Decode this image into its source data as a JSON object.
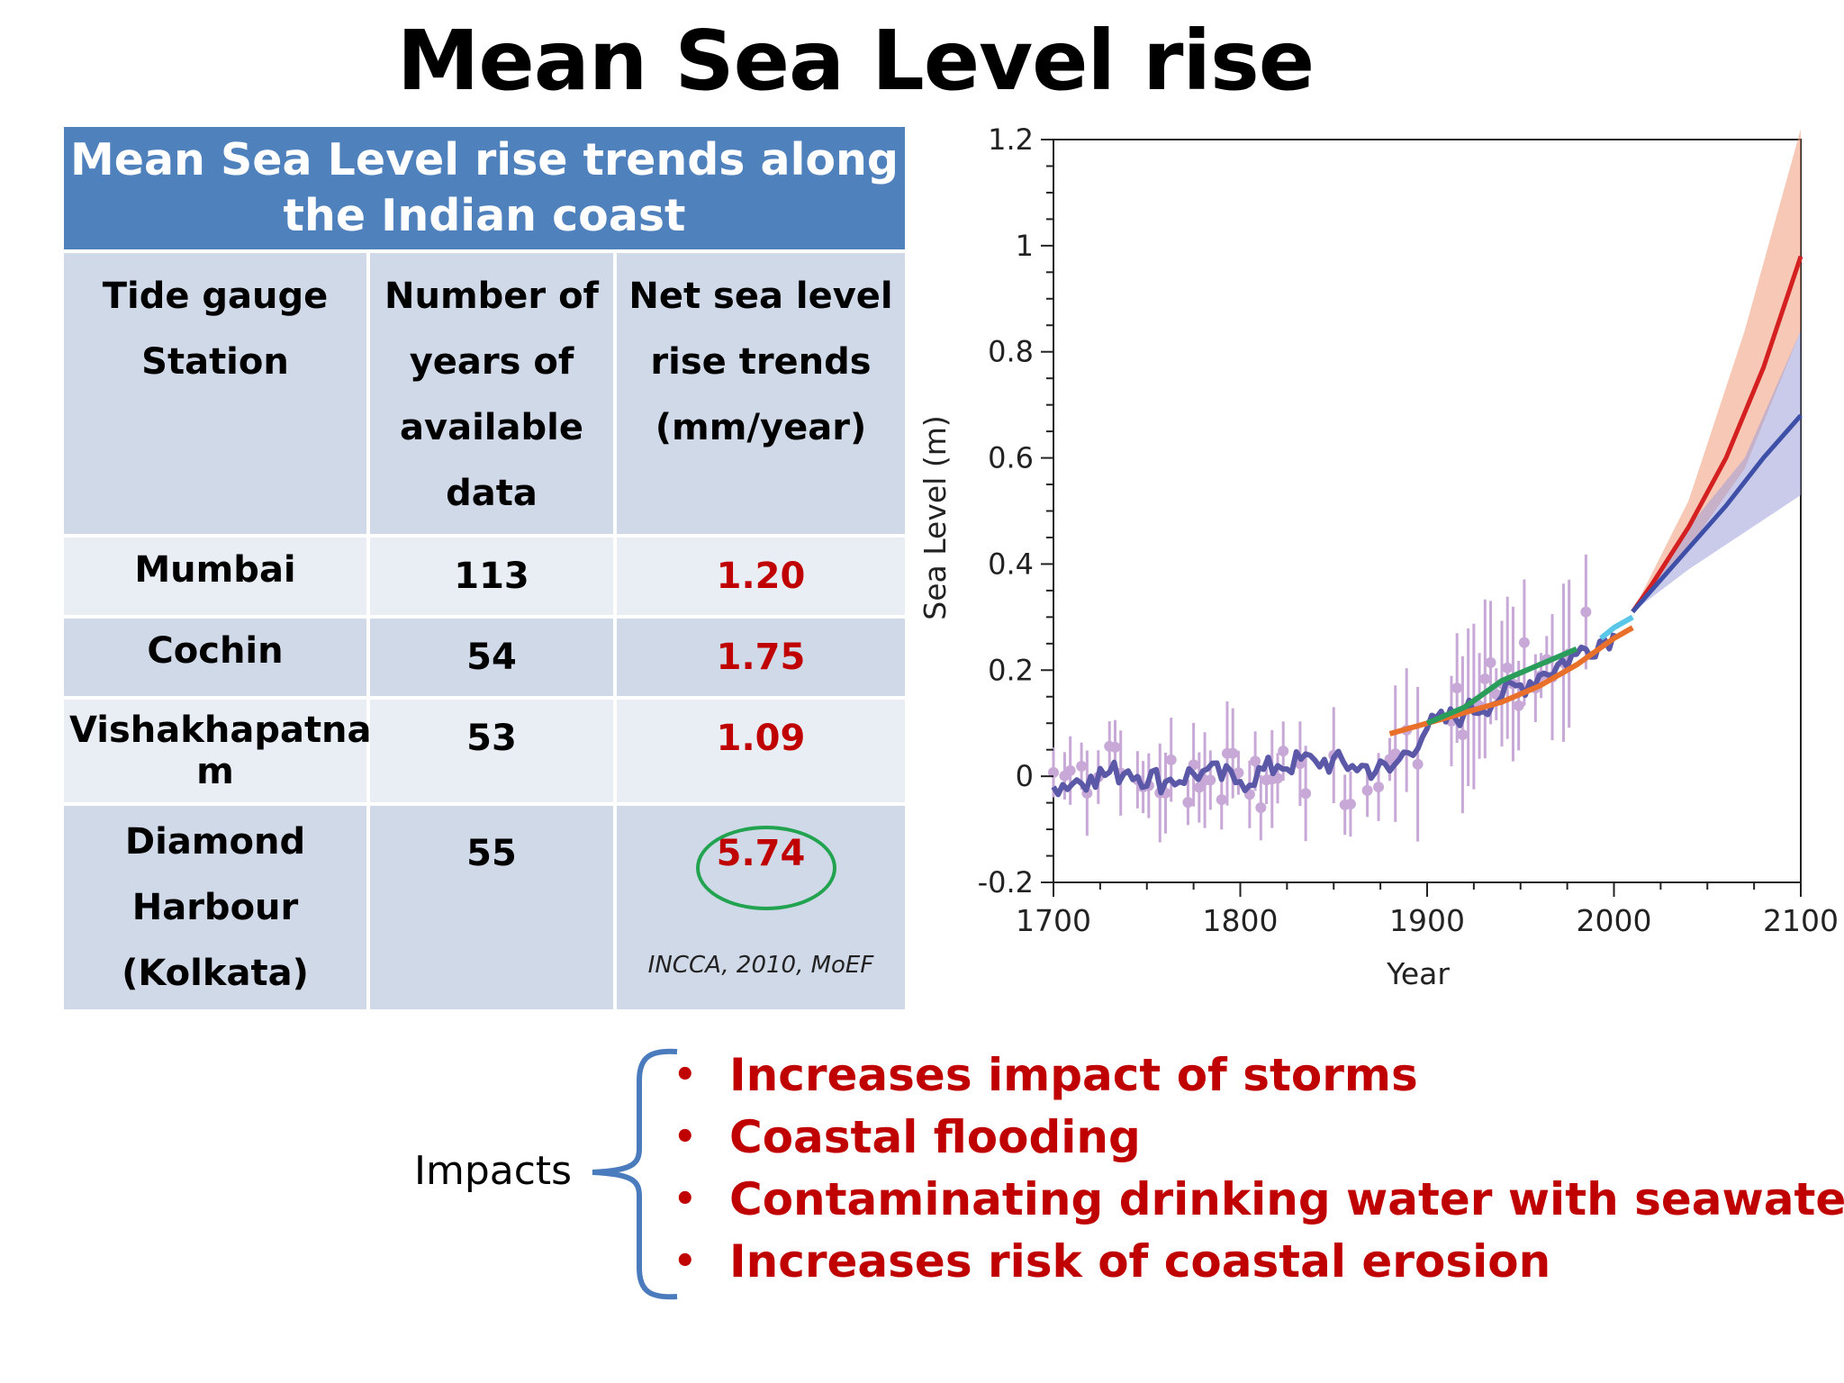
{
  "title": "Mean Sea Level rise",
  "table": {
    "caption_line1": "Mean Sea Level rise trends along",
    "caption_line2": "the Indian coast",
    "headers": [
      [
        "Tide gauge",
        "Station"
      ],
      [
        "Number of",
        "years of",
        "available",
        "data"
      ],
      [
        "Net sea level",
        "rise trends",
        "(mm/year)"
      ]
    ],
    "rows": [
      {
        "station": [
          "Mumbai"
        ],
        "years": "113",
        "trend": "1.20"
      },
      {
        "station": [
          "Cochin"
        ],
        "years": "54",
        "trend": "1.75"
      },
      {
        "station": [
          "Vishakhapatna",
          "m"
        ],
        "years": "53",
        "trend": "1.09"
      },
      {
        "station": [
          "Diamond",
          "Harbour",
          "(Kolkata)"
        ],
        "years": "55",
        "trend": "5.74"
      }
    ],
    "source": "INCCA, 2010, MoEF",
    "highlight_color": "#21a350",
    "trend_color": "#c00000",
    "header_color": "#4f81bd"
  },
  "chart_data": {
    "type": "line",
    "xlabel": "Year",
    "ylabel": "Sea Level (m)",
    "xlim": [
      1700,
      2100
    ],
    "ylim": [
      -0.2,
      1.2
    ],
    "xticks": [
      "1700",
      "1800",
      "1900",
      "2000",
      "2100"
    ],
    "yticks": [
      "-0.2",
      "0",
      "0.2",
      "0.4",
      "0.6",
      "0.8",
      "1",
      "1.2"
    ],
    "series": [
      {
        "color": "#5b58a8",
        "x": [
          1700,
          1720,
          1740,
          1760,
          1780,
          1800,
          1820,
          1840,
          1860,
          1880,
          1900,
          1920,
          1940,
          1960,
          1980,
          2000
        ],
        "y": [
          -0.02,
          0.0,
          0.01,
          -0.01,
          0.01,
          -0.01,
          0.02,
          0.03,
          0.02,
          0.01,
          0.09,
          0.12,
          0.15,
          0.19,
          0.23,
          0.27
        ]
      },
      {
        "color": "#e8702a",
        "x": [
          1880,
          1900,
          1920,
          1940,
          1960,
          1980,
          2000,
          2010
        ],
        "y": [
          0.08,
          0.1,
          0.12,
          0.14,
          0.17,
          0.21,
          0.26,
          0.28
        ]
      },
      {
        "color": "#2a9d5a",
        "x": [
          1900,
          1920,
          1940,
          1960,
          1980
        ],
        "y": [
          0.1,
          0.13,
          0.18,
          0.21,
          0.24
        ]
      },
      {
        "color": "#5bc7e8",
        "x": [
          1993,
          2000,
          2010
        ],
        "y": [
          0.26,
          0.28,
          0.3
        ]
      },
      {
        "color": "#d42020",
        "x": [
          2010,
          2020,
          2040,
          2060,
          2080,
          2100
        ],
        "y": [
          0.31,
          0.36,
          0.47,
          0.6,
          0.77,
          0.98
        ]
      },
      {
        "color": "#3e4fa8",
        "x": [
          2010,
          2020,
          2040,
          2060,
          2080,
          2100
        ],
        "y": [
          0.31,
          0.35,
          0.43,
          0.51,
          0.6,
          0.68
        ]
      }
    ],
    "bands": [
      {
        "color": "#f19a78",
        "x": [
          2010,
          2040,
          2070,
          2100
        ],
        "low": [
          0.31,
          0.43,
          0.58,
          0.84
        ],
        "high": [
          0.31,
          0.52,
          0.84,
          1.22
        ]
      },
      {
        "color": "#9f9ed8",
        "x": [
          2010,
          2040,
          2070,
          2100
        ],
        "low": [
          0.31,
          0.39,
          0.46,
          0.53
        ],
        "high": [
          0.31,
          0.47,
          0.6,
          0.84
        ]
      }
    ],
    "points_color": "#c7a8d6"
  },
  "impacts": {
    "label": "Impacts",
    "bullet": "•",
    "items": [
      "Increases impact of storms",
      "Coastal flooding",
      "Contaminating drinking water with seawater",
      "Increases risk of coastal erosion"
    ]
  }
}
